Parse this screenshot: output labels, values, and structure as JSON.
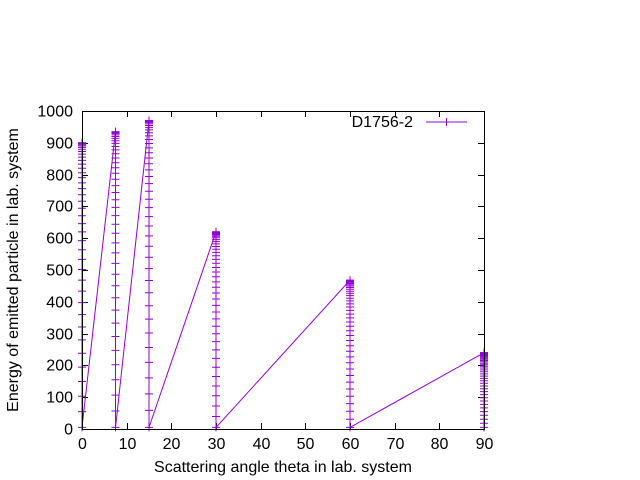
{
  "chart_data": {
    "type": "line",
    "title": "",
    "xlabel": "Scattering angle theta in lab. system",
    "ylabel": "Energy of emitted particle in lab. system",
    "xlim": [
      0,
      90
    ],
    "ylim": [
      0,
      1000
    ],
    "x_ticks": [
      "0",
      "10",
      "20",
      "30",
      "40",
      "50",
      "60",
      "70",
      "80",
      "90"
    ],
    "y_ticks": [
      "0",
      "100",
      "200",
      "300",
      "400",
      "500",
      "600",
      "700",
      "800",
      "900",
      "1000"
    ],
    "grid": false,
    "legend_position": "top-right",
    "series": [
      {
        "name": "D1756-2",
        "color": "#9400d3",
        "marker": "plus",
        "groups": [
          {
            "x": 0,
            "y_max": 900,
            "y_min": 5
          },
          {
            "x": 7.5,
            "y_max": 935,
            "y_min": 5
          },
          {
            "x": 15,
            "y_max": 970,
            "y_min": 5
          },
          {
            "x": 30,
            "y_max": 620,
            "y_min": 5
          },
          {
            "x": 60,
            "y_max": 468,
            "y_min": 5
          },
          {
            "x": 90,
            "y_max": 240,
            "y_min": 5
          }
        ]
      }
    ]
  }
}
